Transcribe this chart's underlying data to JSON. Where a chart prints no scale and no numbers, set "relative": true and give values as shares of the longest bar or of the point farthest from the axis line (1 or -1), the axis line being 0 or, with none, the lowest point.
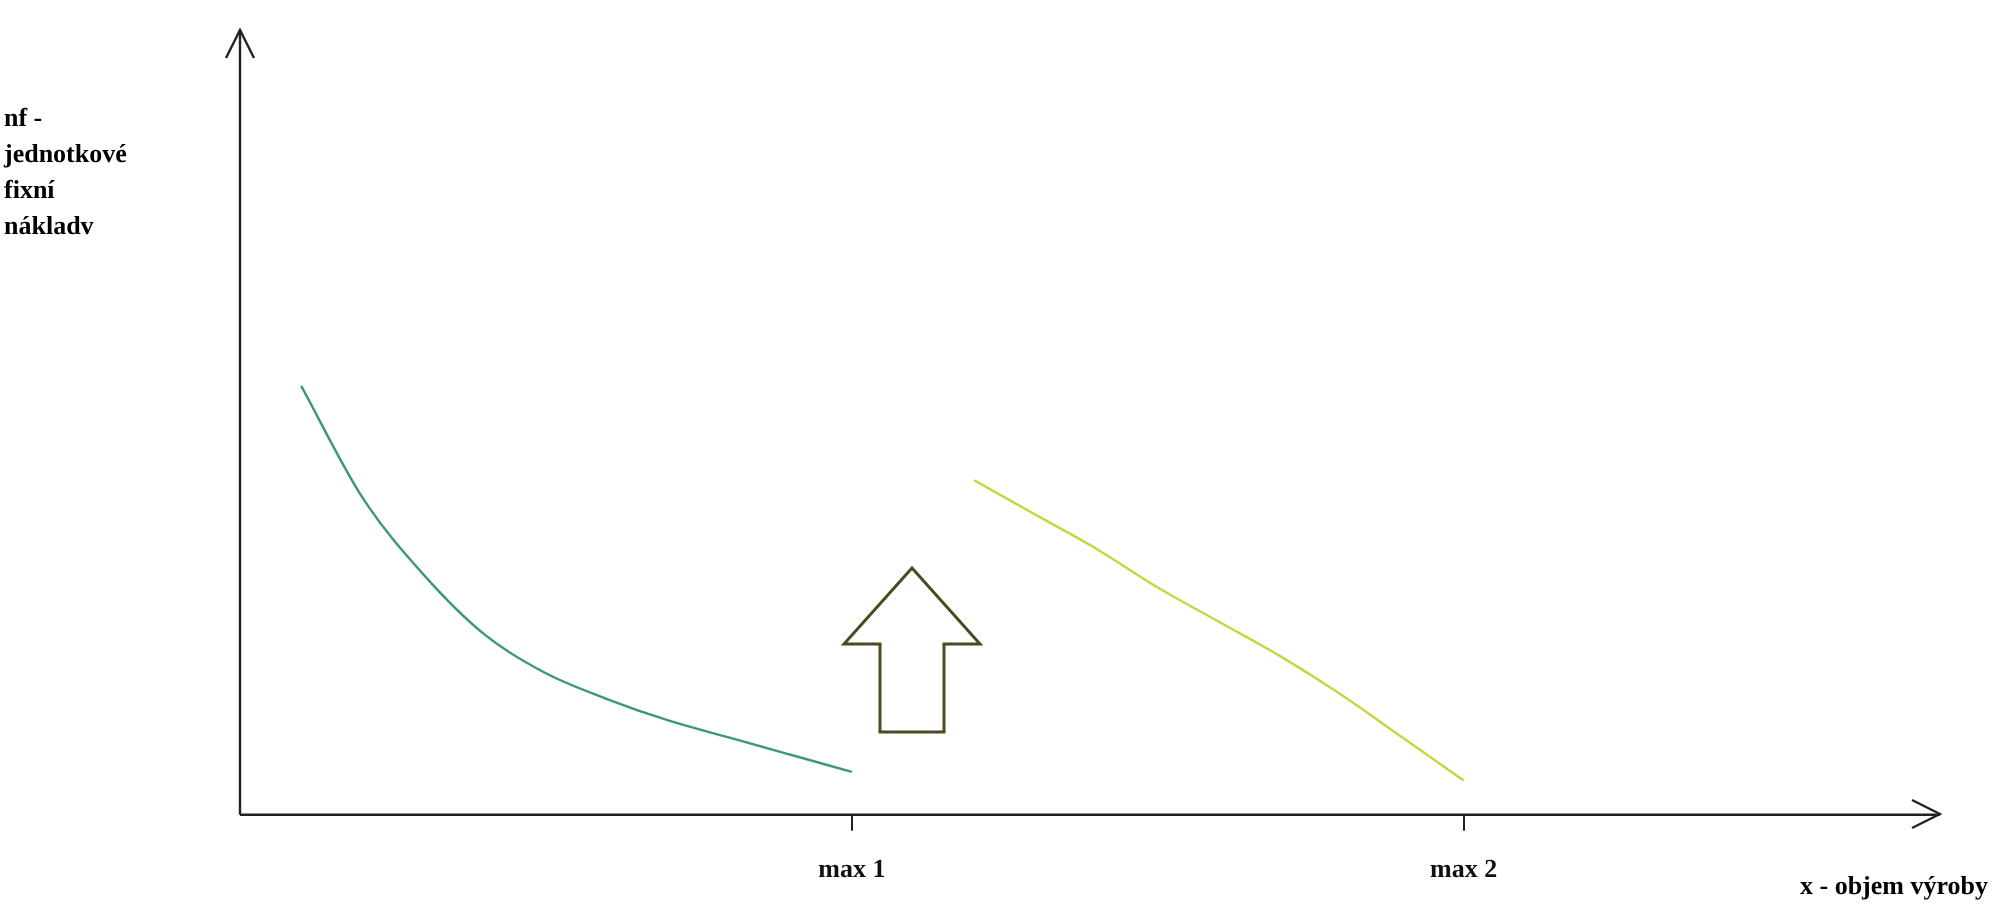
{
  "chart_data": {
    "type": "line",
    "relative": true,
    "xlabel": "x - objem výroby",
    "annotations": [
      "nf - jednotkové fixní nákladv"
    ],
    "categories": [
      null,
      null,
      null,
      null,
      null,
      null,
      null,
      null,
      null,
      null,
      "max 1",
      null,
      null,
      null,
      null,
      null,
      null,
      null,
      null,
      null,
      "max 2",
      null,
      null,
      null,
      null,
      null,
      null,
      null
    ],
    "grid": false,
    "legend": false,
    "marker": "none",
    "line_style": "solid",
    "series": [
      {
        "color": "#3c9a6c",
        "values": [
          null,
          1,
          0.74,
          0.56,
          0.42,
          0.33,
          0.27,
          0.22,
          0.18,
          0.14,
          0.1,
          null,
          null,
          null,
          null,
          null,
          null,
          null,
          null,
          null,
          null,
          null,
          null,
          null,
          null,
          null,
          null,
          null
        ]
      },
      {
        "color": "#c6d640",
        "values": [
          null,
          null,
          null,
          null,
          null,
          null,
          null,
          null,
          null,
          null,
          null,
          null,
          0.78,
          0.7,
          0.62,
          0.53,
          0.45,
          0.37,
          0.28,
          0.18,
          0.08,
          null,
          null,
          null,
          null,
          null,
          null,
          null
        ]
      }
    ]
  }
}
